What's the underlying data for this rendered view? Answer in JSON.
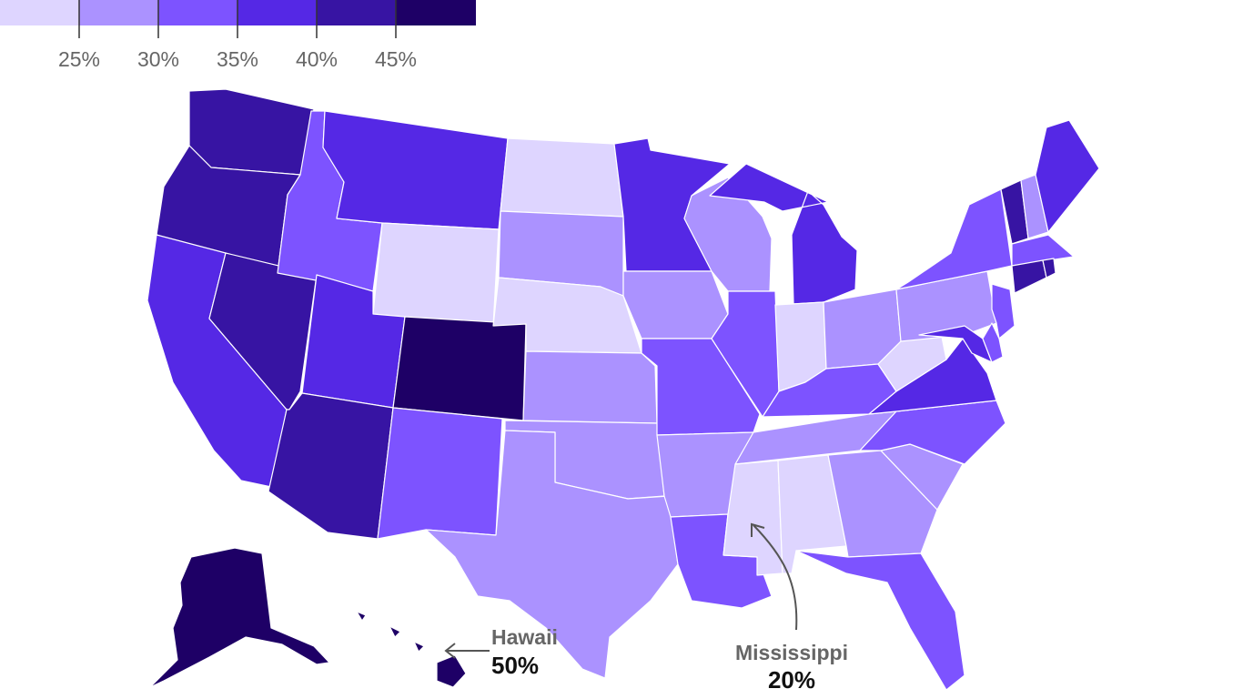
{
  "legend": {
    "colors": [
      "#ded5ff",
      "#ab92ff",
      "#7d53ff",
      "#5528e5",
      "#3714a3",
      "#1e0066"
    ],
    "tick_labels": [
      "25%",
      "30%",
      "35%",
      "40%",
      "45%"
    ]
  },
  "callouts": {
    "hawaii": {
      "name": "Hawaii",
      "value": "50%"
    },
    "mississippi": {
      "name": "Mississippi",
      "value": "20%"
    }
  },
  "states": [
    {
      "name": "Washington",
      "bin": 4
    },
    {
      "name": "Oregon",
      "bin": 4
    },
    {
      "name": "California",
      "bin": 3
    },
    {
      "name": "Nevada",
      "bin": 4
    },
    {
      "name": "Idaho",
      "bin": 2
    },
    {
      "name": "Montana",
      "bin": 3
    },
    {
      "name": "Wyoming",
      "bin": 0
    },
    {
      "name": "Utah",
      "bin": 3
    },
    {
      "name": "Colorado",
      "bin": 5
    },
    {
      "name": "Arizona",
      "bin": 4
    },
    {
      "name": "New Mexico",
      "bin": 2
    },
    {
      "name": "North Dakota",
      "bin": 0
    },
    {
      "name": "South Dakota",
      "bin": 1
    },
    {
      "name": "Nebraska",
      "bin": 0
    },
    {
      "name": "Kansas",
      "bin": 1
    },
    {
      "name": "Oklahoma",
      "bin": 1
    },
    {
      "name": "Texas",
      "bin": 1
    },
    {
      "name": "Minnesota",
      "bin": 3
    },
    {
      "name": "Iowa",
      "bin": 1
    },
    {
      "name": "Missouri",
      "bin": 2
    },
    {
      "name": "Arkansas",
      "bin": 1
    },
    {
      "name": "Louisiana",
      "bin": 2
    },
    {
      "name": "Wisconsin",
      "bin": 1
    },
    {
      "name": "Illinois",
      "bin": 2
    },
    {
      "name": "Michigan",
      "bin": 3
    },
    {
      "name": "Indiana",
      "bin": 0
    },
    {
      "name": "Ohio",
      "bin": 1
    },
    {
      "name": "Kentucky",
      "bin": 2
    },
    {
      "name": "Tennessee",
      "bin": 1
    },
    {
      "name": "Mississippi",
      "bin": 0
    },
    {
      "name": "Alabama",
      "bin": 0
    },
    {
      "name": "Georgia",
      "bin": 1
    },
    {
      "name": "Florida",
      "bin": 2
    },
    {
      "name": "South Carolina",
      "bin": 1
    },
    {
      "name": "North Carolina",
      "bin": 2
    },
    {
      "name": "Virginia",
      "bin": 3
    },
    {
      "name": "West Virginia",
      "bin": 0
    },
    {
      "name": "Pennsylvania",
      "bin": 1
    },
    {
      "name": "New York",
      "bin": 2
    },
    {
      "name": "Vermont",
      "bin": 4
    },
    {
      "name": "New Hampshire",
      "bin": 1
    },
    {
      "name": "Maine",
      "bin": 3
    },
    {
      "name": "Massachusetts",
      "bin": 2
    },
    {
      "name": "Connecticut",
      "bin": 4
    },
    {
      "name": "Rhode Island",
      "bin": 4
    },
    {
      "name": "New Jersey",
      "bin": 2
    },
    {
      "name": "Maryland",
      "bin": 3
    },
    {
      "name": "Delaware",
      "bin": 2
    },
    {
      "name": "Alaska",
      "bin": 5
    },
    {
      "name": "Hawaii",
      "bin": 5
    }
  ]
}
